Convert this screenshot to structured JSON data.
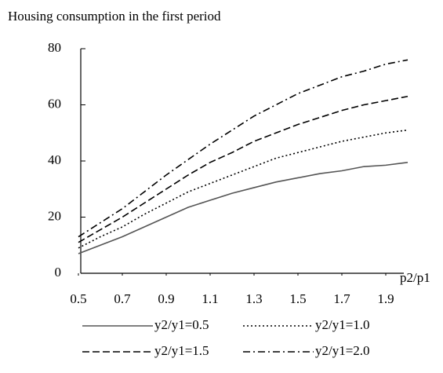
{
  "chart_data": {
    "type": "line",
    "title": "Housing consumption in the first period",
    "x_label": "p2/p1",
    "x": [
      0.5,
      0.6,
      0.7,
      0.8,
      0.9,
      1.0,
      1.1,
      1.2,
      1.3,
      1.4,
      1.5,
      1.6,
      1.7,
      1.8,
      1.9,
      2.0
    ],
    "series": [
      {
        "name": "y2/y1=0.5",
        "color": "#555555",
        "dash": "solid",
        "values": [
          7,
          10,
          13,
          16.5,
          20,
          23.5,
          26,
          28.5,
          30.5,
          32.5,
          34,
          35.5,
          36.5,
          38,
          38.5,
          39.5
        ]
      },
      {
        "name": "y2/y1=1.0",
        "color": "#000000",
        "dash": "dotted",
        "values": [
          9,
          13,
          16.5,
          21,
          25,
          29,
          32,
          35,
          38,
          41,
          43,
          45,
          47,
          48.5,
          50,
          51
        ]
      },
      {
        "name": "y2/y1=1.5",
        "color": "#000000",
        "dash": "dashed",
        "values": [
          11,
          15.5,
          20,
          25,
          30,
          35,
          39.5,
          43,
          47,
          50,
          53,
          55.5,
          58,
          60,
          61.5,
          63
        ]
      },
      {
        "name": "y2/y1=2.0",
        "color": "#000000",
        "dash": "dashdot",
        "values": [
          13,
          18,
          23,
          29,
          35,
          40.5,
          46,
          51,
          56,
          60,
          64,
          67,
          70,
          72,
          74.5,
          76
        ]
      }
    ],
    "xlim": [
      0.5,
      2.0
    ],
    "xticks": [
      0.5,
      0.7,
      0.9,
      1.1,
      1.3,
      1.5,
      1.7,
      1.9
    ],
    "ylim": [
      0,
      80
    ],
    "yticks": [
      0,
      20,
      40,
      60,
      80
    ],
    "grid": false
  }
}
